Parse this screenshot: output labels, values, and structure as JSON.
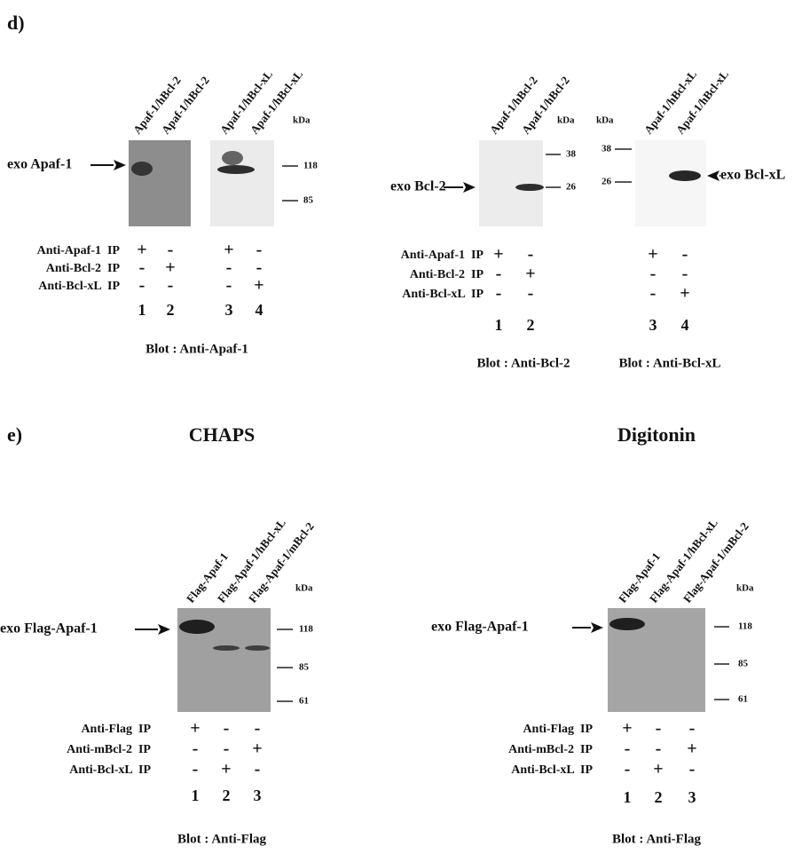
{
  "panel_d": {
    "label": "d)",
    "blots": [
      {
        "lanes": [
          "Apaf-1/hBcl-2",
          "Apaf-1/hBcl-2",
          "Apaf-1/hBcl-xL",
          "Apaf-1/hBcl-xL"
        ],
        "kda": "kDa",
        "markers": [
          "118",
          "85"
        ],
        "band": "exo Apaf-1",
        "ip": [
          {
            "label": "Anti-Apaf-1  IP",
            "signs": [
              "+",
              "-",
              "+",
              "-"
            ]
          },
          {
            "label": "Anti-Bcl-2  IP",
            "signs": [
              "-",
              "+",
              "-",
              "-"
            ]
          },
          {
            "label": "Anti-Bcl-xL  IP",
            "signs": [
              "-",
              "-",
              "-",
              "+"
            ]
          }
        ],
        "lane_numbers": [
          "1",
          "2",
          "3",
          "4"
        ],
        "blot": "Blot : Anti-Apaf-1"
      },
      {
        "lanes": [
          "Apaf-1/hBcl-2",
          "Apaf-1/hBcl-2"
        ],
        "kda": "kDa",
        "markers": [
          "38",
          "26"
        ],
        "band": "exo Bcl-2",
        "ip": [
          {
            "label": "Anti-Apaf-1  IP",
            "signs": [
              "+",
              "-"
            ]
          },
          {
            "label": "Anti-Bcl-2  IP",
            "signs": [
              "-",
              "+"
            ]
          },
          {
            "label": "Anti-Bcl-xL  IP",
            "signs": [
              "-",
              "-"
            ]
          }
        ],
        "lane_numbers": [
          "1",
          "2"
        ],
        "blot": "Blot : Anti-Bcl-2"
      },
      {
        "lanes": [
          "Apaf-1/hBcl-xL",
          "Apaf-1/hBcl-xL"
        ],
        "kda": "kDa",
        "markers": [
          "38",
          "26"
        ],
        "band": "exo Bcl-xL",
        "ip": [
          {
            "signs": [
              "+",
              "-"
            ]
          },
          {
            "signs": [
              "-",
              "-"
            ]
          },
          {
            "signs": [
              "-",
              "+"
            ]
          }
        ],
        "lane_numbers": [
          "3",
          "4"
        ],
        "blot": "Blot : Anti-Bcl-xL"
      }
    ]
  },
  "panel_e": {
    "label": "e)",
    "blots": [
      {
        "condition": "CHAPS",
        "lanes": [
          "Flag-Apaf-1",
          "Flag-Apaf-1/hBcl-xL",
          "Flag-Apaf-1/mBcl-2"
        ],
        "kda": "kDa",
        "markers": [
          "118",
          "85",
          "61"
        ],
        "band": "exo Flag-Apaf-1",
        "ip": [
          {
            "label": "Anti-Flag  IP",
            "signs": [
              "+",
              "-",
              "-"
            ]
          },
          {
            "label": "Anti-mBcl-2  IP",
            "signs": [
              "-",
              "-",
              "+"
            ]
          },
          {
            "label": "Anti-Bcl-xL  IP",
            "signs": [
              "-",
              "+",
              "-"
            ]
          }
        ],
        "lane_numbers": [
          "1",
          "2",
          "3"
        ],
        "blot": "Blot : Anti-Flag"
      },
      {
        "condition": "Digitonin",
        "lanes": [
          "Flag-Apaf-1",
          "Flag-Apaf-1/hBcl-xL",
          "Flag-Apaf-1/mBcl-2"
        ],
        "kda": "kDa",
        "markers": [
          "118",
          "85",
          "61"
        ],
        "band": "exo Flag-Apaf-1",
        "ip": [
          {
            "label": "Anti-Flag  IP",
            "signs": [
              "+",
              "-",
              "-"
            ]
          },
          {
            "label": "Anti-mBcl-2  IP",
            "signs": [
              "-",
              "-",
              "+"
            ]
          },
          {
            "label": "Anti-Bcl-xL  IP",
            "signs": [
              "-",
              "+",
              "-"
            ]
          }
        ],
        "lane_numbers": [
          "1",
          "2",
          "3"
        ],
        "blot": "Blot : Anti-Flag"
      }
    ]
  }
}
